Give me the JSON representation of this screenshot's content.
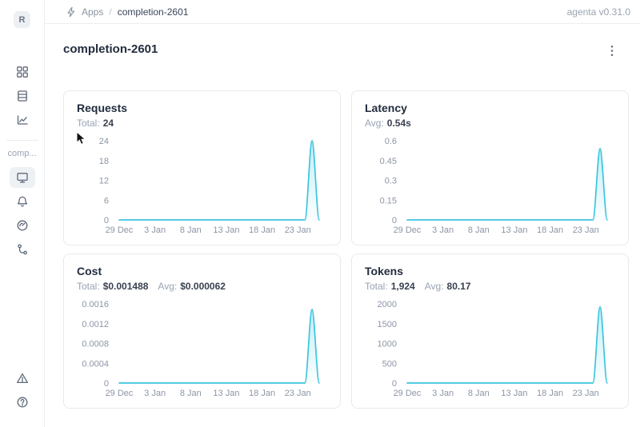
{
  "topbar": {
    "breadcrumb": {
      "section": "Apps",
      "separator": "/",
      "current": "completion-2601"
    },
    "version": "agenta v0.31.0"
  },
  "sidebar": {
    "logo_letter": "R",
    "workspace_label": "comp..."
  },
  "page": {
    "title": "completion-2601"
  },
  "colors": {
    "line": "#3bc5de",
    "fill_top": "rgba(59,197,222,0.30)",
    "fill_bottom": "rgba(59,197,222,0.02)",
    "selected_nav_bg": "#eef1f4"
  },
  "cards": [
    {
      "title": "Requests",
      "stats": [
        {
          "label": "Total:",
          "value": "24"
        }
      ]
    },
    {
      "title": "Latency",
      "stats": [
        {
          "label": "Avg:",
          "value": "0.54s"
        }
      ]
    },
    {
      "title": "Cost",
      "stats": [
        {
          "label": "Total:",
          "value": "$0.001488"
        },
        {
          "label": "Avg:",
          "value": "$0.000062"
        }
      ]
    },
    {
      "title": "Tokens",
      "stats": [
        {
          "label": "Total:",
          "value": "1,924"
        },
        {
          "label": "Avg:",
          "value": "80.17"
        }
      ]
    }
  ],
  "chart_data": [
    {
      "type": "area",
      "title": "Requests",
      "x": [
        "29 Dec",
        "30 Dec",
        "31 Dec",
        "1 Jan",
        "2 Jan",
        "3 Jan",
        "4 Jan",
        "5 Jan",
        "6 Jan",
        "7 Jan",
        "8 Jan",
        "9 Jan",
        "10 Jan",
        "11 Jan",
        "12 Jan",
        "13 Jan",
        "14 Jan",
        "15 Jan",
        "16 Jan",
        "17 Jan",
        "18 Jan",
        "19 Jan",
        "20 Jan",
        "21 Jan",
        "22 Jan",
        "23 Jan",
        "24 Jan",
        "25 Jan",
        "26 Jan"
      ],
      "values": [
        0,
        0,
        0,
        0,
        0,
        0,
        0,
        0,
        0,
        0,
        0,
        0,
        0,
        0,
        0,
        0,
        0,
        0,
        0,
        0,
        0,
        0,
        0,
        0,
        0,
        0,
        0,
        24,
        0
      ],
      "y_ticks": [
        0,
        6,
        12,
        18,
        24
      ],
      "y_tick_labels": [
        "0",
        "6",
        "12",
        "18",
        "24"
      ],
      "x_tick_indices": [
        0,
        5,
        10,
        15,
        20,
        25
      ],
      "x_tick_labels": [
        "29 Dec",
        "3 Jan",
        "8 Jan",
        "13 Jan",
        "18 Jan",
        "23 Jan"
      ],
      "ylim": [
        0,
        24
      ],
      "grid": false,
      "legend": false
    },
    {
      "type": "area",
      "title": "Latency",
      "x": [
        "29 Dec",
        "30 Dec",
        "31 Dec",
        "1 Jan",
        "2 Jan",
        "3 Jan",
        "4 Jan",
        "5 Jan",
        "6 Jan",
        "7 Jan",
        "8 Jan",
        "9 Jan",
        "10 Jan",
        "11 Jan",
        "12 Jan",
        "13 Jan",
        "14 Jan",
        "15 Jan",
        "16 Jan",
        "17 Jan",
        "18 Jan",
        "19 Jan",
        "20 Jan",
        "21 Jan",
        "22 Jan",
        "23 Jan",
        "24 Jan",
        "25 Jan",
        "26 Jan"
      ],
      "values": [
        0,
        0,
        0,
        0,
        0,
        0,
        0,
        0,
        0,
        0,
        0,
        0,
        0,
        0,
        0,
        0,
        0,
        0,
        0,
        0,
        0,
        0,
        0,
        0,
        0,
        0,
        0,
        0.54,
        0
      ],
      "y_ticks": [
        0,
        0.15,
        0.3,
        0.45,
        0.6
      ],
      "y_tick_labels": [
        "0",
        "0.15",
        "0.3",
        "0.45",
        "0.6"
      ],
      "x_tick_indices": [
        0,
        5,
        10,
        15,
        20,
        25
      ],
      "x_tick_labels": [
        "29 Dec",
        "3 Jan",
        "8 Jan",
        "13 Jan",
        "18 Jan",
        "23 Jan"
      ],
      "ylim": [
        0,
        0.6
      ],
      "grid": false,
      "legend": false
    },
    {
      "type": "area",
      "title": "Cost",
      "x": [
        "29 Dec",
        "30 Dec",
        "31 Dec",
        "1 Jan",
        "2 Jan",
        "3 Jan",
        "4 Jan",
        "5 Jan",
        "6 Jan",
        "7 Jan",
        "8 Jan",
        "9 Jan",
        "10 Jan",
        "11 Jan",
        "12 Jan",
        "13 Jan",
        "14 Jan",
        "15 Jan",
        "16 Jan",
        "17 Jan",
        "18 Jan",
        "19 Jan",
        "20 Jan",
        "21 Jan",
        "22 Jan",
        "23 Jan",
        "24 Jan",
        "25 Jan",
        "26 Jan"
      ],
      "values": [
        0,
        0,
        0,
        0,
        0,
        0,
        0,
        0,
        0,
        0,
        0,
        0,
        0,
        0,
        0,
        0,
        0,
        0,
        0,
        0,
        0,
        0,
        0,
        0,
        0,
        0,
        0,
        0.001488,
        0
      ],
      "y_ticks": [
        0,
        0.0004,
        0.0008,
        0.0012,
        0.0016
      ],
      "y_tick_labels": [
        "0",
        "0.0004",
        "0.0008",
        "0.0012",
        "0.0016"
      ],
      "x_tick_indices": [
        0,
        5,
        10,
        15,
        20,
        25
      ],
      "x_tick_labels": [
        "29 Dec",
        "3 Jan",
        "8 Jan",
        "13 Jan",
        "18 Jan",
        "23 Jan"
      ],
      "ylim": [
        0,
        0.0016
      ],
      "grid": false,
      "legend": false
    },
    {
      "type": "area",
      "title": "Tokens",
      "x": [
        "29 Dec",
        "30 Dec",
        "31 Dec",
        "1 Jan",
        "2 Jan",
        "3 Jan",
        "4 Jan",
        "5 Jan",
        "6 Jan",
        "7 Jan",
        "8 Jan",
        "9 Jan",
        "10 Jan",
        "11 Jan",
        "12 Jan",
        "13 Jan",
        "14 Jan",
        "15 Jan",
        "16 Jan",
        "17 Jan",
        "18 Jan",
        "19 Jan",
        "20 Jan",
        "21 Jan",
        "22 Jan",
        "23 Jan",
        "24 Jan",
        "25 Jan",
        "26 Jan"
      ],
      "values": [
        0,
        0,
        0,
        0,
        0,
        0,
        0,
        0,
        0,
        0,
        0,
        0,
        0,
        0,
        0,
        0,
        0,
        0,
        0,
        0,
        0,
        0,
        0,
        0,
        0,
        0,
        0,
        1924,
        0
      ],
      "y_ticks": [
        0,
        500,
        1000,
        1500,
        2000
      ],
      "y_tick_labels": [
        "0",
        "500",
        "1000",
        "1500",
        "2000"
      ],
      "x_tick_indices": [
        0,
        5,
        10,
        15,
        20,
        25
      ],
      "x_tick_labels": [
        "29 Dec",
        "3 Jan",
        "8 Jan",
        "13 Jan",
        "18 Jan",
        "23 Jan"
      ],
      "ylim": [
        0,
        2000
      ],
      "grid": false,
      "legend": false
    }
  ]
}
